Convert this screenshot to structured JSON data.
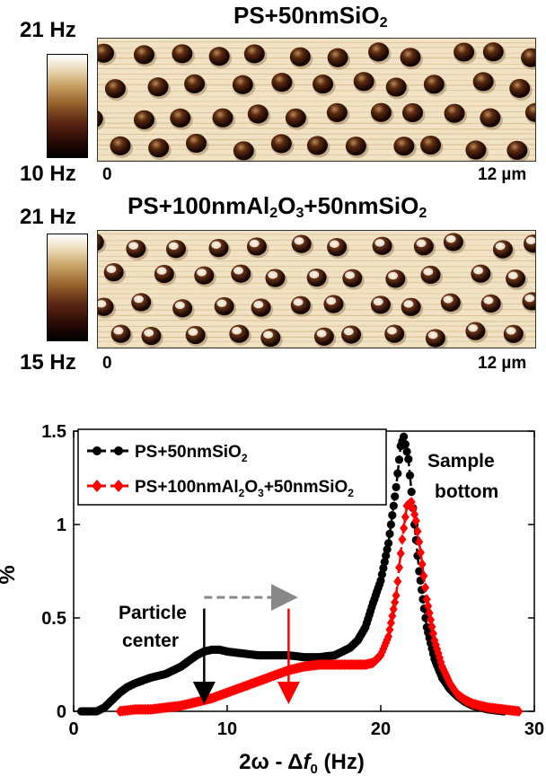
{
  "panel_top": {
    "title_main": "PS+50nmSiO",
    "title_sub": "2",
    "cbar_max": "21 Hz",
    "cbar_min": "10 Hz",
    "axis_start": "0",
    "axis_end": "12 µm"
  },
  "panel_mid": {
    "title_a": "PS+100nmAl",
    "title_sub1": "2",
    "title_b": "O",
    "title_sub2": "3",
    "title_c": "+50nmSiO",
    "title_sub3": "2",
    "cbar_max": "21 Hz",
    "cbar_min": "15 Hz",
    "axis_start": "0",
    "axis_end": "12 µm"
  },
  "annotations": {
    "particle_line1": "Particle",
    "particle_line2": "center",
    "sample_line1": "Sample",
    "sample_line2": "bottom"
  },
  "chart_data": {
    "type": "line",
    "title": "",
    "xlabel_prefix": "2ω - Δ",
    "xlabel_var": "f",
    "xlabel_sub": "0",
    "xlabel_suffix": " (Hz)",
    "ylabel": "%",
    "xlim": [
      0,
      30
    ],
    "ylim": [
      0,
      1.5
    ],
    "xticks": [
      0,
      10,
      20,
      30
    ],
    "yticks": [
      0,
      0.5,
      1,
      1.5
    ],
    "ytick_labels": [
      "0",
      "0.5",
      "1",
      "1.5"
    ],
    "legend_position": "top-left",
    "series": [
      {
        "name": "PS+50nmSiO",
        "name_sub": "2",
        "color": "#000000",
        "marker": "circle",
        "points": [
          [
            0.5,
            0.0
          ],
          [
            1.5,
            0.0
          ],
          [
            2.0,
            0.02
          ],
          [
            2.5,
            0.06
          ],
          [
            3,
            0.1
          ],
          [
            3.5,
            0.13
          ],
          [
            4,
            0.15
          ],
          [
            5,
            0.18
          ],
          [
            6,
            0.2
          ],
          [
            7,
            0.24
          ],
          [
            7.5,
            0.27
          ],
          [
            8,
            0.3
          ],
          [
            8.5,
            0.32
          ],
          [
            9,
            0.33
          ],
          [
            9.5,
            0.33
          ],
          [
            10,
            0.32
          ],
          [
            11,
            0.31
          ],
          [
            12,
            0.3
          ],
          [
            13,
            0.3
          ],
          [
            14,
            0.3
          ],
          [
            15,
            0.29
          ],
          [
            16,
            0.29
          ],
          [
            17,
            0.3
          ],
          [
            18,
            0.34
          ],
          [
            18.5,
            0.38
          ],
          [
            19,
            0.45
          ],
          [
            19.5,
            0.58
          ],
          [
            20,
            0.7
          ],
          [
            20.5,
            0.9
          ],
          [
            21,
            1.2
          ],
          [
            21.3,
            1.42
          ],
          [
            21.5,
            1.47
          ],
          [
            21.8,
            1.35
          ],
          [
            22.2,
            1.0
          ],
          [
            22.5,
            0.75
          ],
          [
            23,
            0.45
          ],
          [
            23.5,
            0.28
          ],
          [
            24,
            0.18
          ],
          [
            24.5,
            0.12
          ],
          [
            25,
            0.08
          ],
          [
            25.5,
            0.05
          ],
          [
            26,
            0.03
          ],
          [
            26.5,
            0.02
          ],
          [
            27,
            0.01
          ],
          [
            28,
            0.0
          ]
        ]
      },
      {
        "name_a": "PS+100nmAl",
        "name_sub1": "2",
        "name_b": "O",
        "name_sub2": "3",
        "name_c": "+50nmSiO",
        "name_sub3": "2",
        "color": "#ff0000",
        "marker": "diamond",
        "points": [
          [
            3,
            0.0
          ],
          [
            4,
            0.01
          ],
          [
            5,
            0.01
          ],
          [
            6,
            0.02
          ],
          [
            7,
            0.03
          ],
          [
            8,
            0.05
          ],
          [
            9,
            0.07
          ],
          [
            10,
            0.1
          ],
          [
            11,
            0.13
          ],
          [
            12,
            0.16
          ],
          [
            13,
            0.19
          ],
          [
            14,
            0.22
          ],
          [
            15,
            0.24
          ],
          [
            16,
            0.25
          ],
          [
            17,
            0.25
          ],
          [
            18,
            0.25
          ],
          [
            19,
            0.25
          ],
          [
            19.5,
            0.26
          ],
          [
            20,
            0.3
          ],
          [
            20.5,
            0.4
          ],
          [
            21,
            0.62
          ],
          [
            21.4,
            0.92
          ],
          [
            21.7,
            1.1
          ],
          [
            22,
            1.12
          ],
          [
            22.3,
            1.02
          ],
          [
            22.6,
            0.85
          ],
          [
            23,
            0.6
          ],
          [
            23.5,
            0.38
          ],
          [
            24,
            0.24
          ],
          [
            24.5,
            0.15
          ],
          [
            25,
            0.09
          ],
          [
            25.5,
            0.06
          ],
          [
            26,
            0.04
          ],
          [
            27,
            0.02
          ],
          [
            28,
            0.01
          ],
          [
            29,
            0.0
          ]
        ]
      }
    ],
    "arrows": [
      {
        "name": "black-down-arrow",
        "x": 8.5,
        "y_from": 0.55,
        "y_to": 0.06,
        "color": "#000000"
      },
      {
        "name": "red-down-arrow",
        "x": 14.0,
        "y_from": 0.55,
        "y_to": 0.06,
        "color": "#ff0000"
      },
      {
        "name": "gray-dashed-arrow",
        "x_from": 8.5,
        "x_to": 14.2,
        "y": 0.61,
        "color": "#888888"
      }
    ]
  }
}
